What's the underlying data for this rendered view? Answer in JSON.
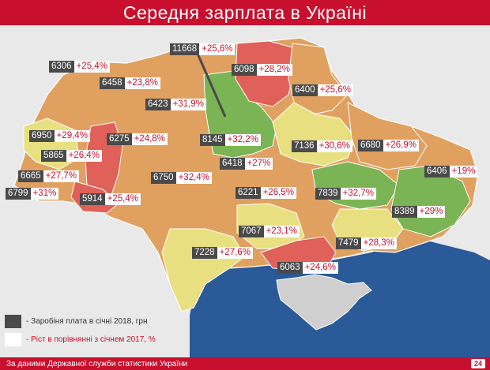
{
  "title": "Середня зарплата в Україні",
  "colors": {
    "title_bg": "#c8102e",
    "orange": "#e0a060",
    "red": "#e0605a",
    "green": "#7bb454",
    "yellow": "#e8e080",
    "gray": "#cfcfcf",
    "label_dark": "#4a4a4a",
    "label_red": "#c8102e"
  },
  "regions": [
    {
      "salary": "6306",
      "growth": "+25,4%"
    },
    {
      "salary": "11668",
      "growth": "+25,6%"
    },
    {
      "salary": "6098",
      "growth": "+28,2%"
    },
    {
      "salary": "6458",
      "growth": "+23,8%"
    },
    {
      "salary": "6400",
      "growth": "+25,6%"
    },
    {
      "salary": "6423",
      "growth": "+31,9%"
    },
    {
      "salary": "6950",
      "growth": "+29,4%"
    },
    {
      "salary": "6275",
      "growth": "+24,8%"
    },
    {
      "salary": "8145",
      "growth": "+32,2%"
    },
    {
      "salary": "7136",
      "growth": "+30,6%"
    },
    {
      "salary": "6680",
      "growth": "+26,9%"
    },
    {
      "salary": "5865",
      "growth": "+26,4%"
    },
    {
      "salary": "6418",
      "growth": "+27%"
    },
    {
      "salary": "6406",
      "growth": "+19%"
    },
    {
      "salary": "6665",
      "growth": "+27,7%"
    },
    {
      "salary": "6750",
      "growth": "+32,4%"
    },
    {
      "salary": "6799",
      "growth": "+31%"
    },
    {
      "salary": "6221",
      "growth": "+26,5%"
    },
    {
      "salary": "7839",
      "growth": "+32,7%"
    },
    {
      "salary": "5914",
      "growth": "+25,4%"
    },
    {
      "salary": "8389",
      "growth": "+29%"
    },
    {
      "salary": "7067",
      "growth": "+23,1%"
    },
    {
      "salary": "7228",
      "growth": "+27,6%"
    },
    {
      "salary": "7479",
      "growth": "+28,3%"
    },
    {
      "salary": "6063",
      "growth": "+24,6%"
    }
  ],
  "legend": {
    "salary_label": "- Заробіня плата в січні 2018, грн",
    "growth_label": "- Ріст в порівнянні з січнем 2017, %"
  },
  "footer": {
    "source": "За даними Державної служби статистики України",
    "logo": "24"
  }
}
